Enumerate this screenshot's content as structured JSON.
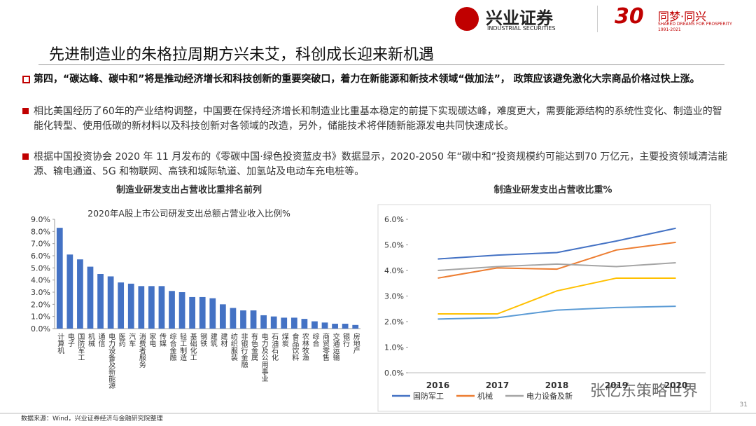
{
  "header": {
    "brand": "兴业证券",
    "brand_en": "INDUSTRIAL SECURITIES",
    "slogan": "同梦·同兴",
    "slogan_en": "SHARED DREAMS FOR PROSPERITY",
    "years": "1991-2021"
  },
  "title": "先进制造业的朱格拉周期方兴未艾，科创成长迎来新机遇",
  "bullets": [
    "第四，“碳达峰、碳中和”将是推动经济增长和科技创新的重要突破口，着力在新能源和新技术领域“做加法”， 政策应该避免激化大宗商品价格过快上涨。",
    "相比美国经历了60年的产业结构调整，中国要在保持经济增长和制造业比重基本稳定的前提下实现碳达峰，难度更大，需要能源结构的系统性变化、制造业的智能化转型、使用低碳的新材料以及科技创新对各领域的改造，另外，储能技术将伴随新能源发电共同快速成长。",
    "根据中国投资协会 2020 年 11 月发布的《零碳中国·绿色投资蓝皮书》数据显示，2020-2050 年“碳中和”投资规模约可能达到70 万亿元，主要投资领域清洁能源、输电通道、5G 和物联网、高铁和城际轨道、加氢站及电动车充电桩等。"
  ],
  "chart_data": [
    {
      "type": "bar",
      "title": "制造业研发支出占营收比重排名前列",
      "subtitle": "2020年A股上市公司研发支出总额占营业收入比例%",
      "color": "#4472c4",
      "categories": [
        "计算机",
        "电子",
        "国防军工",
        "机械",
        "通信",
        "电力设备及新能源",
        "医药",
        "汽车",
        "消费者服务",
        "家电",
        "传媒",
        "综合金融",
        "轻工制造",
        "基础化工",
        "钢铁",
        "建筑",
        "建材",
        "纺织服装",
        "非银行金融",
        "有色金属",
        "电力及公用事业",
        "石油石化",
        "煤炭",
        "食品饮料",
        "农林牧渔",
        "综合",
        "商贸零售",
        "交通运输",
        "银行",
        "房地产"
      ],
      "values": [
        8.3,
        6.1,
        5.7,
        5.1,
        4.5,
        4.3,
        3.8,
        3.7,
        3.5,
        3.5,
        3.5,
        3.1,
        3.0,
        2.6,
        2.6,
        2.5,
        2.0,
        1.7,
        1.5,
        1.5,
        1.1,
        1.0,
        0.9,
        0.9,
        0.8,
        0.6,
        0.5,
        0.4,
        0.4,
        0.3
      ],
      "ylim": [
        0,
        9
      ],
      "yticks": [
        {
          "value": 0,
          "label": "0.0%"
        },
        {
          "value": 1,
          "label": "1.0%"
        },
        {
          "value": 2,
          "label": "2.0%"
        },
        {
          "value": 3,
          "label": "3.0%"
        },
        {
          "value": 4,
          "label": "4.0%"
        },
        {
          "value": 5,
          "label": "5.0%"
        },
        {
          "value": 6,
          "label": "6.0%"
        },
        {
          "value": 7,
          "label": "7.0%"
        },
        {
          "value": 8,
          "label": "8.0%"
        },
        {
          "value": 9,
          "label": "9.0%"
        }
      ]
    },
    {
      "type": "line",
      "title": "制造业研发支出占营收比重%",
      "categories": [
        "2016",
        "2017",
        "2018",
        "2019",
        "2020"
      ],
      "series": [
        {
          "name": "国防军工",
          "color": "#4472c4",
          "values": [
            4.45,
            4.6,
            4.7,
            5.15,
            5.65
          ]
        },
        {
          "name": "机械",
          "color": "#ed7d31",
          "values": [
            3.7,
            4.1,
            4.05,
            4.8,
            5.1
          ]
        },
        {
          "name": "电力设备及新",
          "color": "#a5a5a5",
          "values": [
            4.0,
            4.15,
            4.25,
            4.15,
            4.3
          ]
        },
        {
          "color": "#ffc000",
          "values": [
            2.3,
            2.3,
            3.2,
            3.7,
            3.7
          ]
        },
        {
          "color": "#5b9bd5",
          "values": [
            2.1,
            2.15,
            2.45,
            2.55,
            2.6
          ]
        }
      ],
      "ylim": [
        0,
        6
      ],
      "yticks": [
        {
          "value": 0,
          "label": "0.0%"
        },
        {
          "value": 1,
          "label": "1.0%"
        },
        {
          "value": 2,
          "label": "2.0%"
        },
        {
          "value": 3,
          "label": "3.0%"
        },
        {
          "value": 4,
          "label": "4.0%"
        },
        {
          "value": 5,
          "label": "5.0%"
        },
        {
          "value": 6,
          "label": "6.0%"
        }
      ]
    }
  ],
  "watermark": "张忆东策略世界",
  "source": "数据来源：Wind，兴业证券经济与金融研究院整理",
  "page": "31"
}
